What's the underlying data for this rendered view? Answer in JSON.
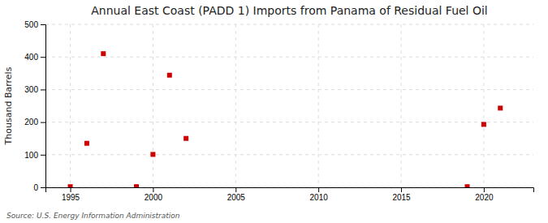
{
  "chart_data": {
    "type": "scatter",
    "title": "Annual East Coast (PADD 1) Imports from Panama of Residual Fuel Oil",
    "ylabel": "Thousand Barrels",
    "annotations": [
      "Source: U.S. Energy Information Administration"
    ],
    "x": [
      1995,
      1996,
      1997,
      1999,
      2000,
      2001,
      2002,
      2019,
      2020,
      2021
    ],
    "values": [
      2,
      135,
      410,
      2,
      101,
      344,
      150,
      2,
      193,
      243
    ],
    "color": "#cc0000",
    "marker": "square",
    "xlim": [
      1993.5,
      2023
    ],
    "ylim": [
      0,
      500
    ],
    "xticks": [
      1995,
      2000,
      2005,
      2010,
      2015,
      2020
    ],
    "yticks": [
      0,
      100,
      200,
      300,
      400,
      500
    ],
    "grid": true
  }
}
